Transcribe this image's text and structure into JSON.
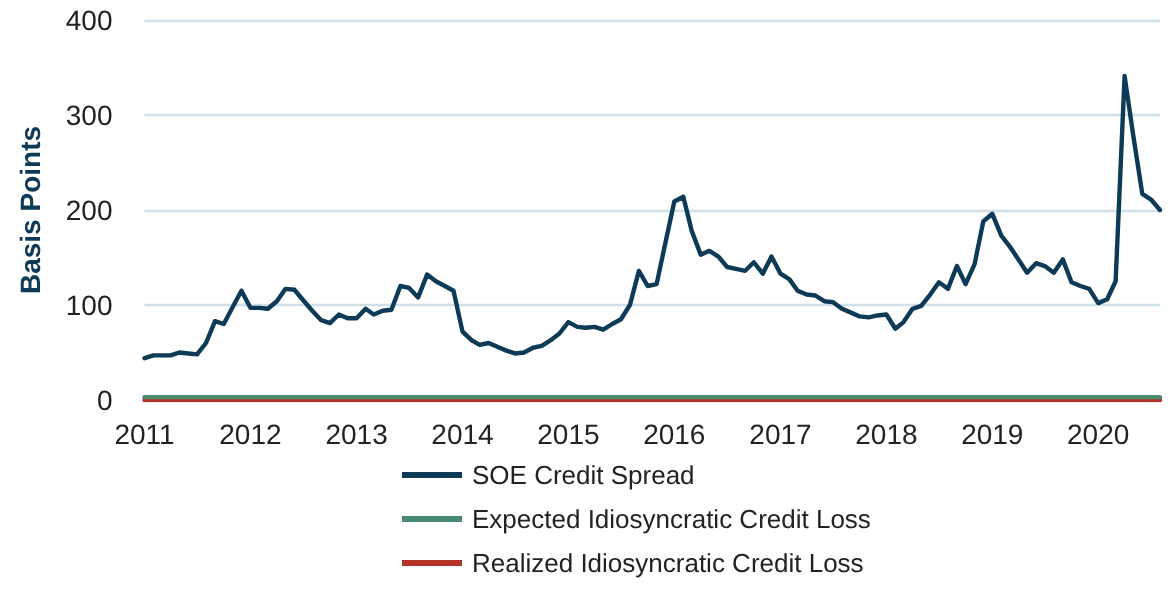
{
  "chart_data": {
    "type": "line",
    "ylabel": "Basis Points",
    "ylim": [
      0,
      400
    ],
    "yticks": [
      0,
      100,
      200,
      300,
      400
    ],
    "xlim": [
      "2011-01",
      "2020-08"
    ],
    "xticks": [
      {
        "value": "2011",
        "label": "2011"
      },
      {
        "value": "2012",
        "label": "2012"
      },
      {
        "value": "2013",
        "label": "2013"
      },
      {
        "value": "2014",
        "label": "2014"
      },
      {
        "value": "2015",
        "label": "2015"
      },
      {
        "value": "2016",
        "label": "2016"
      },
      {
        "value": "2017",
        "label": "2017"
      },
      {
        "value": "2018",
        "label": "2018"
      },
      {
        "value": "2019",
        "label": "2019"
      },
      {
        "value": "2020",
        "label": "2020"
      }
    ],
    "grid": "y",
    "legend": "bottom",
    "marker": "none",
    "line_style": "solid",
    "series": [
      {
        "name": "SOE Credit Spread",
        "color": "#0d3a57",
        "x": [
          "2011-01",
          "2011-02",
          "2011-03",
          "2011-04",
          "2011-05",
          "2011-06",
          "2011-07",
          "2011-08",
          "2011-09",
          "2011-10",
          "2011-11",
          "2011-12",
          "2012-01",
          "2012-02",
          "2012-03",
          "2012-04",
          "2012-05",
          "2012-06",
          "2012-07",
          "2012-08",
          "2012-09",
          "2012-10",
          "2012-11",
          "2012-12",
          "2013-01",
          "2013-02",
          "2013-03",
          "2013-04",
          "2013-05",
          "2013-06",
          "2013-07",
          "2013-08",
          "2013-09",
          "2013-10",
          "2013-11",
          "2013-12",
          "2014-01",
          "2014-02",
          "2014-03",
          "2014-04",
          "2014-05",
          "2014-06",
          "2014-07",
          "2014-08",
          "2014-09",
          "2014-10",
          "2014-11",
          "2014-12",
          "2015-01",
          "2015-02",
          "2015-03",
          "2015-04",
          "2015-05",
          "2015-06",
          "2015-07",
          "2015-08",
          "2015-09",
          "2015-10",
          "2015-11",
          "2015-12",
          "2016-01",
          "2016-02",
          "2016-03",
          "2016-04",
          "2016-05",
          "2016-06",
          "2016-07",
          "2016-08",
          "2016-09",
          "2016-10",
          "2016-11",
          "2016-12",
          "2017-01",
          "2017-02",
          "2017-03",
          "2017-04",
          "2017-05",
          "2017-06",
          "2017-07",
          "2017-08",
          "2017-09",
          "2017-10",
          "2017-11",
          "2017-12",
          "2018-01",
          "2018-02",
          "2018-03",
          "2018-04",
          "2018-05",
          "2018-06",
          "2018-07",
          "2018-08",
          "2018-09",
          "2018-10",
          "2018-11",
          "2018-12",
          "2019-01",
          "2019-02",
          "2019-03",
          "2019-04",
          "2019-05",
          "2019-06",
          "2019-07",
          "2019-08",
          "2019-09",
          "2019-10",
          "2019-11",
          "2019-12",
          "2020-01",
          "2020-02",
          "2020-03",
          "2020-04",
          "2020-05",
          "2020-06",
          "2020-07",
          "2020-08"
        ],
        "values": [
          44,
          47,
          47,
          47,
          50,
          49,
          48,
          60,
          83,
          80,
          98,
          115,
          97,
          97,
          96,
          104,
          117,
          116,
          105,
          94,
          84,
          81,
          90,
          86,
          86,
          96,
          90,
          94,
          95,
          120,
          118,
          108,
          132,
          125,
          120,
          115,
          72,
          63,
          58,
          60,
          56,
          52,
          49,
          50,
          55,
          57,
          63,
          70,
          82,
          77,
          76,
          77,
          74,
          80,
          85,
          100,
          136,
          120,
          122,
          165,
          209,
          214,
          178,
          153,
          157,
          151,
          140,
          138,
          136,
          145,
          133,
          151,
          133,
          127,
          115,
          111,
          110,
          104,
          103,
          96,
          92,
          88,
          87,
          89,
          90,
          75,
          82,
          96,
          99,
          111,
          124,
          117,
          141,
          122,
          143,
          188,
          196,
          173,
          162,
          148,
          134,
          144,
          141,
          134,
          148,
          124,
          120,
          117,
          102,
          106,
          125,
          341,
          278,
          217,
          211,
          200
        ]
      },
      {
        "name": "Expected Idiosyncratic Credit Loss",
        "color": "#4a8a70",
        "x": [
          "2011-01",
          "2020-08"
        ],
        "values": [
          3,
          3
        ]
      },
      {
        "name": "Realized Idiosyncratic Credit Loss",
        "color": "#b5322a",
        "x": [
          "2011-01",
          "2020-08"
        ],
        "values": [
          0,
          0
        ]
      }
    ]
  }
}
